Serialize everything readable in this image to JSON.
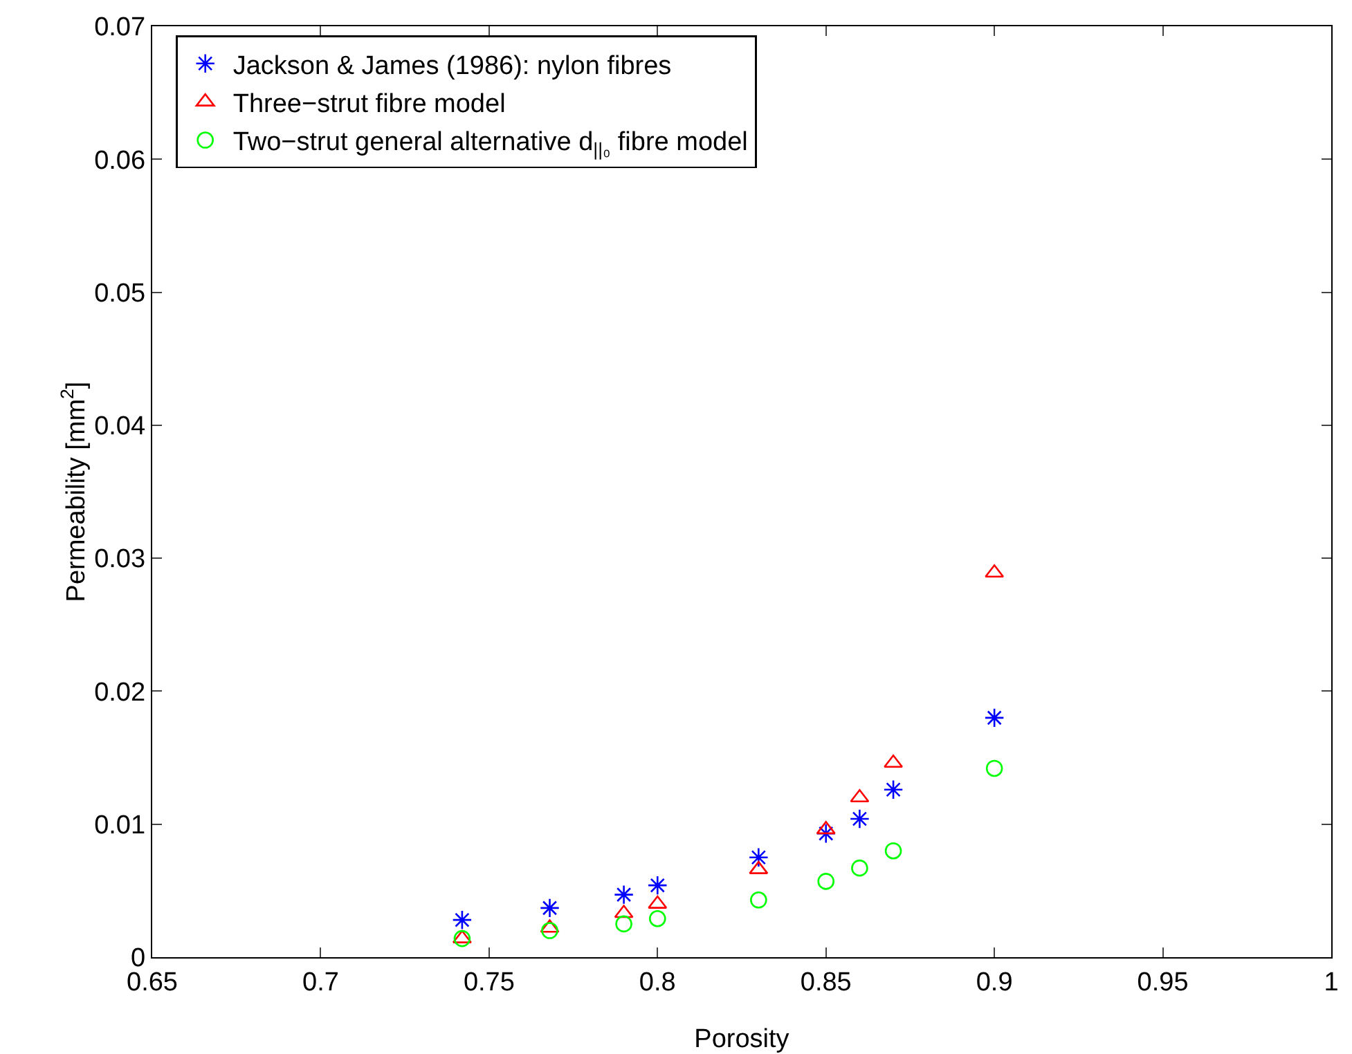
{
  "chart_data": {
    "type": "scatter",
    "xlabel": "Porosity",
    "ylabel": "Permeability [mm$^{2}$]",
    "x": [
      0.742,
      0.768,
      0.79,
      0.8,
      0.83,
      0.85,
      0.86,
      0.87,
      0.9
    ],
    "series": [
      {
        "name": "Jackson & James (1986): nylon fibres",
        "color": "#0000ff",
        "marker": "cross",
        "values": [
          0.0028,
          0.0037,
          0.0047,
          0.0054,
          0.0075,
          0.0093,
          0.0104,
          0.0126,
          0.018
        ]
      },
      {
        "name": "Three−strut fibre model",
        "color": "#ff0000",
        "marker": "triangle",
        "values": [
          0.0014,
          0.0022,
          0.0033,
          0.004,
          0.0066,
          0.0096,
          0.012,
          0.0146,
          0.0289
        ]
      },
      {
        "name": "Two−strut general alternative d$_{||₀}$ fibre model",
        "color": "#00ff00",
        "marker": "circle",
        "values": [
          0.0014,
          0.002,
          0.0025,
          0.0029,
          0.0043,
          0.0057,
          0.0067,
          0.008,
          0.0142
        ]
      }
    ],
    "xlim": [
      0.65,
      1
    ],
    "xticks": [
      0.65,
      0.7,
      0.75,
      0.8,
      0.85,
      0.9,
      0.95,
      1
    ],
    "ylim": [
      0,
      0.07
    ],
    "yticks": [
      0,
      0.01,
      0.02,
      0.03,
      0.04,
      0.05,
      0.06,
      0.07
    ],
    "grid": false,
    "legend": "top left"
  }
}
